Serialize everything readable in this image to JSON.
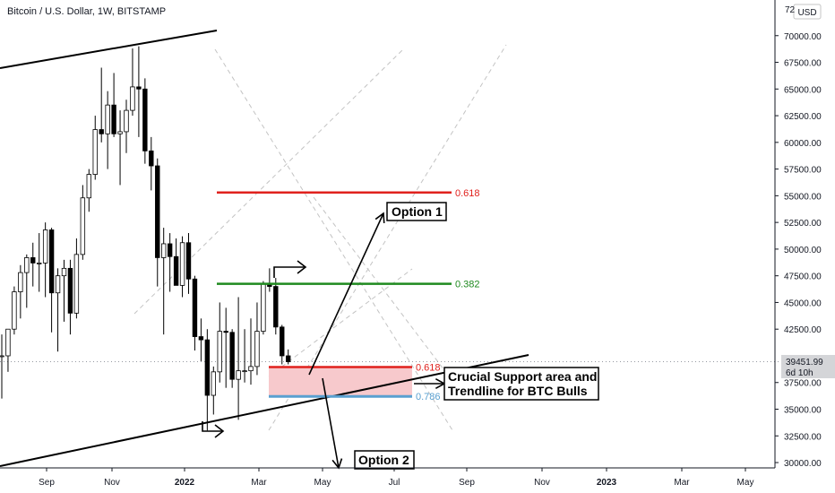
{
  "header": {
    "symbol_title": "Bitcoin / U.S. Dollar, 1W, BITSTAMP",
    "currency_button": "USD"
  },
  "price_axis": {
    "top_partial_label": "72",
    "labels": [
      "70000.00",
      "67500.00",
      "65000.00",
      "62500.00",
      "60000.00",
      "57500.00",
      "55000.00",
      "52500.00",
      "50000.00",
      "47500.00",
      "45000.00",
      "42500.00",
      "37500.00",
      "35000.00",
      "32500.00",
      "30000.00"
    ]
  },
  "current_price": {
    "value": "39451.99",
    "countdown": "6d 10h"
  },
  "time_axis": {
    "labels": [
      "Sep",
      "Nov",
      "2022",
      "Mar",
      "May",
      "Jul",
      "Sep",
      "Nov",
      "2023",
      "Mar",
      "May"
    ]
  },
  "annotations": {
    "option1": "Option 1",
    "option2": "Option 2",
    "support_line1": "Crucial Support area and",
    "support_line2": "Trendline for BTC Bulls"
  },
  "fib_levels": [
    {
      "label": "0.618",
      "price": 55300,
      "color": "#e0211d"
    },
    {
      "label": "0.382",
      "price": 46750,
      "color": "#1f8a1f"
    },
    {
      "label": "0.618",
      "price": 38950,
      "color": "#e0211d"
    },
    {
      "label": "0.786",
      "price": 36200,
      "color": "#5aa0d0"
    }
  ],
  "colors": {
    "bull": "#ffffff",
    "bear": "#000000",
    "support_zone": "#f7c9cc",
    "wick": "#000000"
  },
  "chart_data": {
    "type": "candlestick",
    "title": "Bitcoin / U.S. Dollar, 1W, BITSTAMP",
    "ylim": [
      29500,
      72500
    ],
    "y_ticks": [
      30000,
      32500,
      35000,
      37500,
      42500,
      45000,
      47500,
      50000,
      52500,
      55000,
      57500,
      60000,
      62500,
      65000,
      67500,
      70000
    ],
    "x_ticks": [
      "Sep",
      "Nov",
      "2022",
      "Mar",
      "May",
      "Jul",
      "Sep",
      "Nov",
      "2023",
      "Mar",
      "May"
    ],
    "last_price": 39451.99,
    "candles": [
      {
        "o": 40000,
        "h": 42000,
        "l": 36000,
        "c": 40000
      },
      {
        "o": 40000,
        "h": 42500,
        "l": 38500,
        "c": 42500
      },
      {
        "o": 42500,
        "h": 46500,
        "l": 42000,
        "c": 46000
      },
      {
        "o": 46000,
        "h": 48500,
        "l": 43500,
        "c": 47800
      },
      {
        "o": 47800,
        "h": 49500,
        "l": 44500,
        "c": 49200
      },
      {
        "o": 49200,
        "h": 50600,
        "l": 46500,
        "c": 48700
      },
      {
        "o": 48700,
        "h": 51500,
        "l": 46000,
        "c": 48700
      },
      {
        "o": 48700,
        "h": 52500,
        "l": 45500,
        "c": 51800
      },
      {
        "o": 51800,
        "h": 52000,
        "l": 42200,
        "c": 45900
      },
      {
        "o": 45900,
        "h": 48200,
        "l": 40400,
        "c": 47500
      },
      {
        "o": 47500,
        "h": 49000,
        "l": 43200,
        "c": 48200
      },
      {
        "o": 48200,
        "h": 49000,
        "l": 42000,
        "c": 44000
      },
      {
        "o": 44000,
        "h": 51000,
        "l": 43500,
        "c": 49500
      },
      {
        "o": 49500,
        "h": 56000,
        "l": 49000,
        "c": 54800
      },
      {
        "o": 54800,
        "h": 57500,
        "l": 53500,
        "c": 57000
      },
      {
        "o": 57000,
        "h": 62500,
        "l": 56500,
        "c": 61200
      },
      {
        "o": 61200,
        "h": 67000,
        "l": 60000,
        "c": 60800
      },
      {
        "o": 60800,
        "h": 64800,
        "l": 57500,
        "c": 63500
      },
      {
        "o": 63500,
        "h": 66500,
        "l": 60500,
        "c": 60800
      },
      {
        "o": 60800,
        "h": 63000,
        "l": 56000,
        "c": 61000
      },
      {
        "o": 61000,
        "h": 64000,
        "l": 59000,
        "c": 63000
      },
      {
        "o": 63000,
        "h": 68800,
        "l": 62500,
        "c": 65200
      },
      {
        "o": 65200,
        "h": 69000,
        "l": 60500,
        "c": 65000
      },
      {
        "o": 65000,
        "h": 66000,
        "l": 58000,
        "c": 59200
      },
      {
        "o": 59200,
        "h": 60500,
        "l": 55500,
        "c": 57800
      },
      {
        "o": 57800,
        "h": 58500,
        "l": 46500,
        "c": 49200
      },
      {
        "o": 49200,
        "h": 52000,
        "l": 42000,
        "c": 50500
      },
      {
        "o": 50500,
        "h": 51500,
        "l": 46000,
        "c": 49300
      },
      {
        "o": 49300,
        "h": 51000,
        "l": 47000,
        "c": 46600
      },
      {
        "o": 46600,
        "h": 51200,
        "l": 45500,
        "c": 50600
      },
      {
        "o": 50600,
        "h": 51500,
        "l": 45800,
        "c": 47200
      },
      {
        "o": 47200,
        "h": 47500,
        "l": 40500,
        "c": 41800
      },
      {
        "o": 41800,
        "h": 43500,
        "l": 39500,
        "c": 41500
      },
      {
        "o": 41500,
        "h": 42500,
        "l": 33000,
        "c": 36300
      },
      {
        "o": 36300,
        "h": 39000,
        "l": 34500,
        "c": 38500
      },
      {
        "o": 38500,
        "h": 45000,
        "l": 37500,
        "c": 42300
      },
      {
        "o": 42300,
        "h": 44500,
        "l": 37000,
        "c": 42200
      },
      {
        "o": 42200,
        "h": 42500,
        "l": 37000,
        "c": 37800
      },
      {
        "o": 37800,
        "h": 45500,
        "l": 34000,
        "c": 38600
      },
      {
        "o": 38600,
        "h": 42500,
        "l": 37500,
        "c": 38600
      },
      {
        "o": 38600,
        "h": 43500,
        "l": 37300,
        "c": 39000
      },
      {
        "o": 39000,
        "h": 45000,
        "l": 38200,
        "c": 42300
      },
      {
        "o": 42300,
        "h": 47000,
        "l": 42000,
        "c": 46800
      },
      {
        "o": 46800,
        "h": 48200,
        "l": 46000,
        "c": 46500
      },
      {
        "o": 46500,
        "h": 47300,
        "l": 42000,
        "c": 42700
      },
      {
        "o": 42700,
        "h": 42900,
        "l": 39200,
        "c": 40000
      },
      {
        "o": 40000,
        "h": 40600,
        "l": 39200,
        "c": 39450
      }
    ]
  }
}
